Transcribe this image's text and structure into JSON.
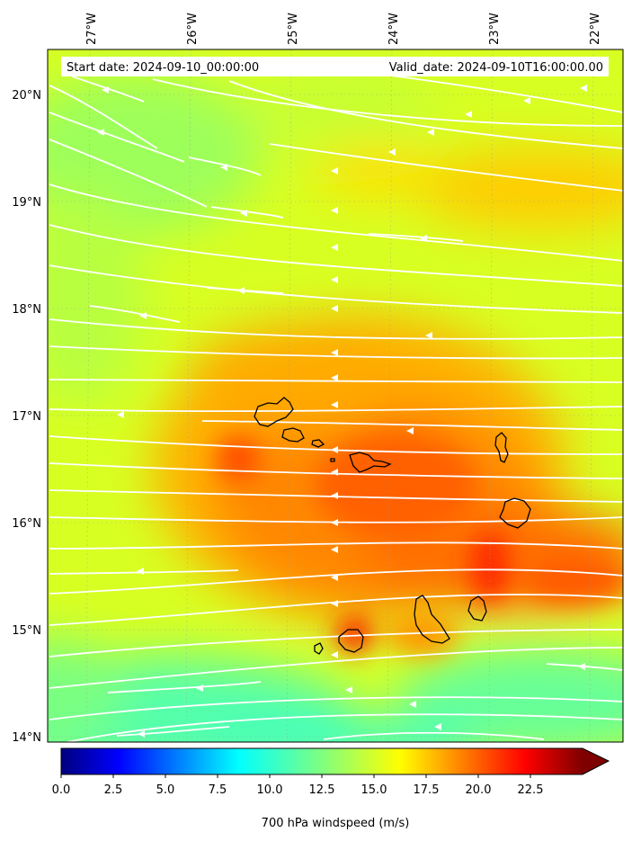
{
  "header": {
    "start_label": "Start date: 2024-09-10_00:00:00",
    "valid_label": "Valid_date: 2024-09-10T16:00:00.00"
  },
  "map": {
    "lon_ticks": [
      "27°W",
      "26°W",
      "25°W",
      "24°W",
      "23°W",
      "22°W"
    ],
    "lat_ticks": [
      "20°N",
      "19°N",
      "18°N",
      "17°N",
      "16°N",
      "15°N",
      "14°N"
    ],
    "features": [
      "windspeed-field",
      "streamlines",
      "island-coastlines"
    ],
    "streamline_color": "#ffffff",
    "coastline_color": "#000000"
  },
  "colorbar": {
    "ticks": [
      "0.0",
      "2.5",
      "5.0",
      "7.5",
      "10.0",
      "12.5",
      "15.0",
      "17.5",
      "20.0",
      "22.5"
    ],
    "label": "700 hPa windspeed (m/s)",
    "vmin": 0,
    "vmax": 25,
    "extend": "max",
    "colormap": "jet"
  }
}
